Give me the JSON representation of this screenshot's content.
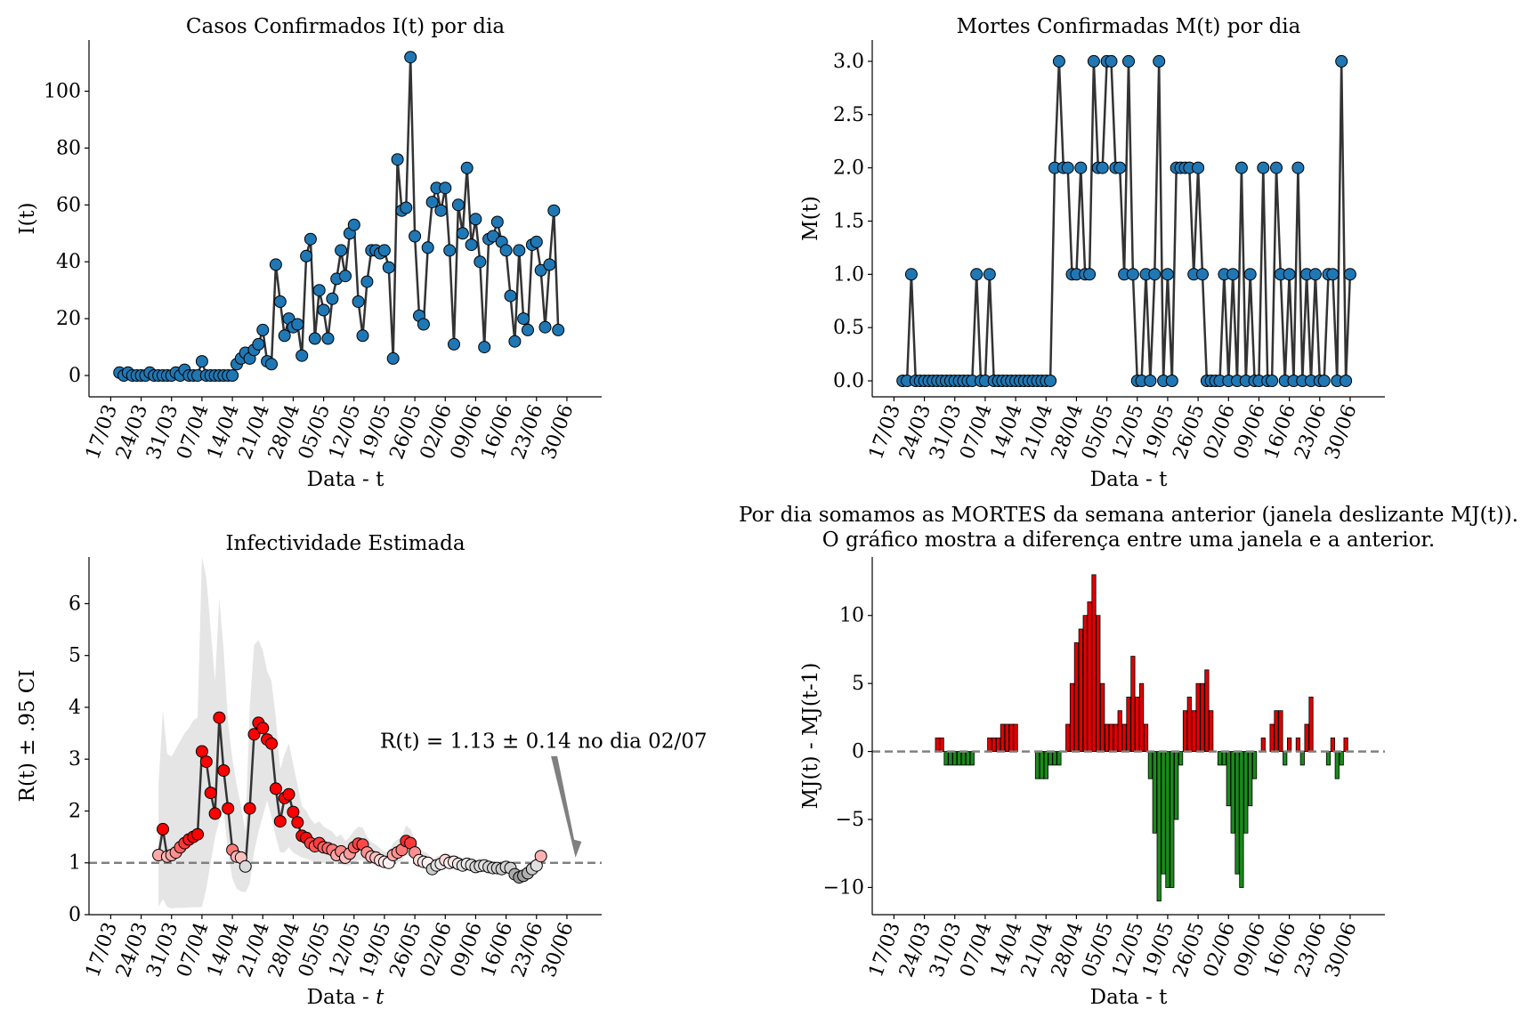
{
  "date_tick_labels": [
    "17/03",
    "24/03",
    "31/03",
    "07/04",
    "14/04",
    "21/04",
    "28/04",
    "05/05",
    "12/05",
    "19/05",
    "26/05",
    "02/06",
    "09/06",
    "16/06",
    "23/06",
    "30/06"
  ],
  "colors": {
    "marker_blue": "#1f77b4",
    "line": "#333333",
    "bar_positive": "#e00000",
    "bar_negative": "#1a8a1a",
    "ci_band": "#e5e5e5",
    "reference_line": "#808080",
    "annotation_arrow": "#808080"
  },
  "chart_data": [
    {
      "id": "cases",
      "type": "line",
      "title": "Casos Confirmados I(t) por dia",
      "xlabel": "Data - t",
      "ylabel": "I(t)",
      "x_start": "2020-03-19",
      "x_range": [
        "2020-03-12",
        "2020-07-08"
      ],
      "ylim": [
        -7.5,
        118
      ],
      "yticks": [
        0,
        20,
        40,
        60,
        80,
        100
      ],
      "values": [
        1,
        0,
        1,
        0,
        0,
        0,
        0,
        1,
        0,
        0,
        0,
        0,
        0,
        1,
        0,
        2,
        0,
        0,
        0,
        5,
        0,
        0,
        0,
        0,
        0,
        0,
        0,
        4,
        6,
        8,
        6,
        9,
        11,
        16,
        5,
        4,
        39,
        26,
        14,
        20,
        17,
        18,
        7,
        42,
        48,
        13,
        30,
        23,
        13,
        27,
        34,
        44,
        35,
        50,
        53,
        26,
        14,
        33,
        44,
        44,
        43,
        44,
        38,
        6,
        76,
        58,
        59,
        112,
        49,
        21,
        18,
        45,
        61,
        66,
        58,
        66,
        44,
        11,
        60,
        50,
        73,
        46,
        55,
        40,
        10,
        48,
        49,
        54,
        47,
        44,
        28,
        12,
        44,
        20,
        16,
        46,
        47,
        37,
        17,
        39,
        58,
        16
      ]
    },
    {
      "id": "deaths",
      "type": "line",
      "title": "Mortes Confirmadas M(t) por dia",
      "xlabel": "Data - t",
      "ylabel": "M(t)",
      "x_start": "2020-03-19",
      "x_range": [
        "2020-03-12",
        "2020-07-08"
      ],
      "ylim": [
        -0.15,
        3.2
      ],
      "yticks": [
        0.0,
        0.5,
        1.0,
        1.5,
        2.0,
        2.5,
        3.0
      ],
      "ytick_labels": [
        "0.0",
        "0.5",
        "1.0",
        "1.5",
        "2.0",
        "2.5",
        "3.0"
      ],
      "values": [
        0,
        0,
        1,
        0,
        0,
        0,
        0,
        0,
        0,
        0,
        0,
        0,
        0,
        0,
        0,
        0,
        0,
        1,
        0,
        0,
        1,
        0,
        0,
        0,
        0,
        0,
        0,
        0,
        0,
        0,
        0,
        0,
        0,
        0,
        0,
        2,
        3,
        2,
        2,
        1,
        1,
        2,
        1,
        1,
        3,
        2,
        2,
        3,
        3,
        2,
        2,
        1,
        3,
        1,
        0,
        0,
        1,
        0,
        1,
        3,
        0,
        1,
        0,
        2,
        2,
        2,
        2,
        1,
        2,
        1,
        0,
        0,
        0,
        0,
        1,
        0,
        1,
        0,
        2,
        0,
        1,
        0,
        0,
        2,
        0,
        0,
        2,
        1,
        0,
        1,
        0,
        2,
        0,
        1,
        0,
        1,
        0,
        0,
        1,
        1,
        0,
        3,
        0,
        1
      ]
    },
    {
      "id": "rt",
      "type": "scatter",
      "title": "Infectividade Estimada",
      "xlabel": "Data - t",
      "xlabel_italic": "t",
      "ylabel": "R(t) ± .95 CI",
      "x_start": "2020-03-28",
      "x_range": [
        "2020-03-12",
        "2020-07-08"
      ],
      "ylim": [
        0,
        6.9
      ],
      "yticks": [
        0,
        1,
        2,
        3,
        4,
        5,
        6
      ],
      "reference_line": 1,
      "values": [
        1.15,
        1.65,
        1.12,
        1.15,
        1.2,
        1.3,
        1.38,
        1.45,
        1.5,
        1.55,
        3.15,
        2.95,
        2.35,
        1.95,
        3.8,
        2.78,
        2.05,
        1.25,
        1.12,
        1.1,
        0.93,
        2.05,
        3.48,
        3.7,
        3.6,
        3.38,
        3.3,
        2.43,
        1.8,
        2.25,
        2.32,
        1.98,
        1.78,
        1.52,
        1.48,
        1.38,
        1.32,
        1.38,
        1.3,
        1.28,
        1.25,
        1.15,
        1.22,
        1.1,
        1.18,
        1.3,
        1.37,
        1.35,
        1.2,
        1.12,
        1.1,
        1.05,
        1.02,
        1.0,
        1.15,
        1.2,
        1.25,
        1.42,
        1.38,
        1.2,
        1.05,
        1.02,
        1.0,
        0.88,
        0.95,
        0.98,
        1.05,
        1.0,
        1.02,
        0.98,
        0.95,
        0.98,
        0.96,
        0.92,
        0.94,
        0.95,
        0.92,
        0.9,
        0.9,
        0.88,
        0.92,
        0.9,
        0.78,
        0.72,
        0.75,
        0.8,
        0.88,
        0.95,
        1.13
      ],
      "ci_lower": [
        0.15,
        0.3,
        0.15,
        0.12,
        0.13,
        0.13,
        0.13,
        0.14,
        0.14,
        0.14,
        0.15,
        0.5,
        1.0,
        1.5,
        1.8,
        2.0,
        1.2,
        0.7,
        0.5,
        0.45,
        0.43,
        0.6,
        1.2,
        1.6,
        1.9,
        2.2,
        1.9,
        1.5,
        1.2,
        1.2,
        1.3,
        1.2,
        1.15,
        1.1,
        1.08,
        1.05,
        1.0,
        1.0,
        1.0,
        1.0,
        1.0,
        0.97,
        0.98,
        0.95,
        0.95,
        1.0,
        1.05,
        1.05,
        1.0,
        0.98,
        0.95,
        0.92,
        0.9,
        0.88,
        0.95,
        1.0,
        1.05,
        1.15,
        1.12,
        1.0,
        0.92,
        0.9,
        0.88,
        0.8,
        0.85,
        0.88,
        0.92,
        0.9,
        0.9,
        0.88,
        0.86,
        0.87,
        0.86,
        0.84,
        0.84,
        0.84,
        0.83,
        0.82,
        0.82,
        0.8,
        0.83,
        0.82,
        0.7,
        0.66,
        0.68,
        0.72,
        0.78,
        0.83,
        1.0
      ],
      "ci_upper": [
        2.5,
        3.95,
        3.1,
        3.05,
        3.2,
        3.35,
        3.5,
        3.6,
        3.75,
        3.8,
        6.9,
        6.5,
        5.5,
        4.5,
        6.1,
        5.1,
        3.7,
        3.0,
        2.5,
        2.1,
        1.6,
        4.0,
        5.2,
        5.3,
        5.1,
        4.7,
        4.5,
        3.8,
        2.8,
        3.1,
        3.3,
        2.9,
        2.5,
        2.1,
        2.0,
        1.85,
        1.75,
        1.8,
        1.7,
        1.65,
        1.6,
        1.5,
        1.55,
        1.42,
        1.5,
        1.62,
        1.7,
        1.68,
        1.5,
        1.4,
        1.35,
        1.28,
        1.22,
        1.2,
        1.38,
        1.45,
        1.5,
        1.72,
        1.65,
        1.45,
        1.28,
        1.22,
        1.18,
        1.05,
        1.12,
        1.15,
        1.2,
        1.15,
        1.15,
        1.12,
        1.08,
        1.1,
        1.08,
        1.05,
        1.06,
        1.06,
        1.03,
        1.0,
        1.0,
        0.98,
        1.02,
        1.0,
        0.88,
        0.82,
        0.85,
        0.9,
        0.98,
        1.05,
        1.27
      ],
      "annotation": {
        "prefix": "R(t) = ",
        "value": "1.13",
        "pm": "±",
        "error": "0.14",
        "suffix": " no dia 02/07",
        "target_date": "2020-07-02",
        "target_value": 1.13,
        "text_anchor_date": "2020-05-18",
        "text_anchor_value": 3.22
      }
    },
    {
      "id": "weekly-death-diff",
      "type": "bar",
      "title": [
        "Por dia somamos as MORTES da semana anterior (janela deslizante MJ(t)).",
        "O gráfico mostra a diferença entre uma janela e a anterior."
      ],
      "xlabel": "Data - t",
      "ylabel": "MJ(t) - MJ(t-1)",
      "x_start": "2020-03-19",
      "x_range": [
        "2020-03-12",
        "2020-07-08"
      ],
      "ylim": [
        -12,
        14.3
      ],
      "yticks": [
        -10,
        -5,
        0,
        5,
        10
      ],
      "ytick_labels": [
        "−10",
        "−5",
        "0",
        "5",
        "10"
      ],
      "reference_line": 0,
      "values": [
        0,
        0,
        0,
        0,
        0,
        0,
        0,
        0,
        1,
        1,
        -1,
        -1,
        -1,
        -1,
        -1,
        -1,
        -1,
        0,
        0,
        0,
        1,
        1,
        1,
        2,
        2,
        2,
        2,
        0,
        0,
        0,
        0,
        -2,
        -2,
        -2,
        -1,
        -1,
        -1,
        0,
        2,
        5,
        8,
        9,
        10,
        11,
        13,
        10,
        5,
        2,
        2,
        2,
        3,
        2,
        4,
        7,
        4,
        5,
        2,
        -2,
        -6,
        -11,
        -9,
        -10,
        -10,
        -5,
        -1,
        3,
        4,
        3,
        5,
        5,
        6,
        3,
        0,
        -1,
        -1,
        -4,
        -6,
        -9,
        -10,
        -6,
        -4,
        -2,
        0,
        1,
        0,
        2,
        3,
        3,
        -1,
        1,
        0,
        1,
        -1,
        2,
        4,
        0,
        0,
        0,
        -1,
        1,
        -2,
        -1,
        1
      ]
    }
  ]
}
